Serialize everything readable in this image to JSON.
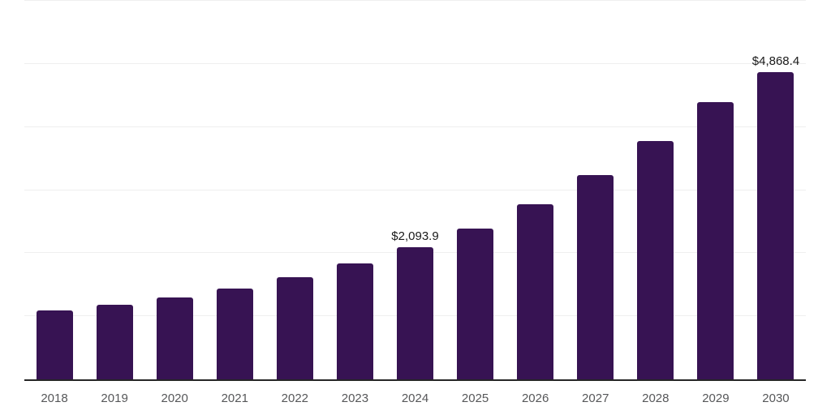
{
  "chart_data": {
    "type": "bar",
    "categories": [
      "2018",
      "2019",
      "2020",
      "2021",
      "2022",
      "2023",
      "2024",
      "2025",
      "2026",
      "2027",
      "2028",
      "2029",
      "2030"
    ],
    "values": [
      1090,
      1180,
      1295,
      1445,
      1615,
      1840,
      2093.9,
      2390,
      2770,
      3240,
      3775,
      4395,
      4868.4
    ],
    "point_labels": {
      "2024": "$2,093.9",
      "2030": "$4,868.4"
    },
    "ylim": [
      0,
      6000
    ],
    "gridline_values": [
      1000,
      2000,
      3000,
      4000,
      5000,
      6000
    ],
    "grid": "horizontal-only",
    "legend": "none",
    "title": "",
    "xlabel": "",
    "ylabel": "",
    "colors": {
      "bar": "#371353",
      "axis_line": "#262626",
      "gridline": "#efefef",
      "data_label": "#1a1a1a",
      "tick_label": "#565759",
      "background": "#ffffff"
    }
  }
}
